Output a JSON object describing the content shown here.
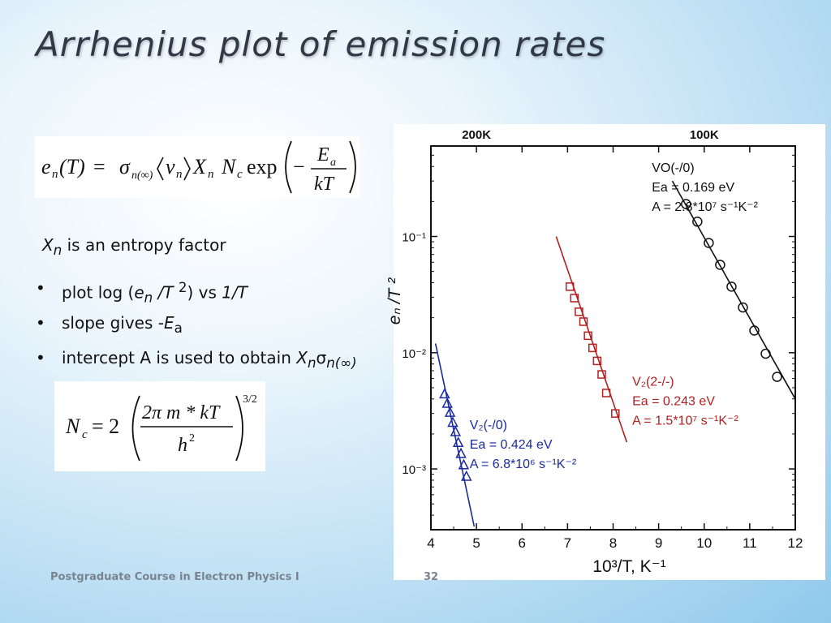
{
  "slide": {
    "title": "Arrhenius plot of emission rates",
    "note_symbol": "X",
    "note_subscript": "n",
    "note_text": " is an entropy factor",
    "bullet_char": "•",
    "bullets": [
      {
        "p1": "plot log (",
        "p2": "e",
        "p3": "n",
        "p4": " /T ",
        "p5": "2",
        "p6": ") vs ",
        "p7": "1/T"
      },
      {
        "p1": "slope gives -",
        "p2": "E",
        "p3": "a"
      },
      {
        "p1": "intercept A is used to obtain ",
        "p2": "X",
        "p3": "n",
        "p4": "σ",
        "p5": "n(∞)"
      }
    ]
  },
  "formula1": {
    "lhs_e": "e",
    "lhs_n": "n",
    "lhs_T": "(T)",
    "equals": "=",
    "sigma": "σ",
    "sigma_sub": "n(∞)",
    "v": "v",
    "v_sub": "n",
    "X": "X",
    "X_sub": "n",
    "N": "N",
    "N_sub": "c",
    "exp": "exp",
    "minus": "−",
    "Ea": "E",
    "Ea_sub": "a",
    "kT": "kT"
  },
  "formula2": {
    "N": "N",
    "N_sub": "c",
    "eq": "= 2",
    "num": "2π m * kT",
    "den": "h",
    "den_sup": "2",
    "power": "3/2"
  },
  "footer": {
    "course": "Postgraduate Course in Electron Physics I",
    "page": "32"
  },
  "chart_data": {
    "type": "scatter",
    "title": "",
    "xlabel": "10³/T, K⁻¹",
    "ylabel": "eₙ /T ²",
    "xlim": [
      4,
      12
    ],
    "ylim": [
      0.0003,
      0.6
    ],
    "y_scale": "log",
    "x_ticks": [
      4,
      5,
      6,
      7,
      8,
      9,
      10,
      11,
      12
    ],
    "y_ticks": [
      {
        "value": 0.1,
        "label": "10⁻¹"
      },
      {
        "value": 0.01,
        "label": "10⁻²"
      },
      {
        "value": 0.001,
        "label": "10⁻³"
      }
    ],
    "top_ticks": [
      {
        "value": 5,
        "label": "200K"
      },
      {
        "value": 10,
        "label": "100K"
      }
    ],
    "grid": false,
    "series": [
      {
        "name": "V₂(-/0)",
        "color": "#1a2aa0",
        "marker": "triangle",
        "x": [
          4.3,
          4.36,
          4.42,
          4.48,
          4.54,
          4.6,
          4.66,
          4.72,
          4.78
        ],
        "y": [
          0.0044,
          0.00365,
          0.00305,
          0.0025,
          0.00208,
          0.00168,
          0.00135,
          0.00108,
          0.00086
        ],
        "fit": {
          "x": [
            4.1,
            4.95
          ],
          "y": [
            0.012,
            0.00032
          ]
        },
        "labels": [
          "V₂(-/0)",
          "Ea = 0.424 eV",
          "A = 6.8*10⁶ s⁻¹K⁻²"
        ]
      },
      {
        "name": "V₂(2-/-)",
        "color": "#b22020",
        "marker": "square",
        "x": [
          7.05,
          7.15,
          7.25,
          7.35,
          7.45,
          7.55,
          7.65,
          7.75,
          7.85,
          8.05
        ],
        "y": [
          0.037,
          0.0295,
          0.0225,
          0.0185,
          0.014,
          0.011,
          0.0085,
          0.0065,
          0.0045,
          0.003
        ],
        "fit": {
          "x": [
            6.75,
            8.3
          ],
          "y": [
            0.1,
            0.0017
          ]
        },
        "labels": [
          "V₂(2-/-)",
          "Ea = 0.243 eV",
          "A = 1.5*10⁷ s⁻¹K⁻²"
        ]
      },
      {
        "name": "VO(-/0)",
        "color": "#111111",
        "marker": "circle",
        "x": [
          9.6,
          9.85,
          10.1,
          10.35,
          10.6,
          10.85,
          11.1,
          11.35,
          11.6
        ],
        "y": [
          0.19,
          0.134,
          0.088,
          0.057,
          0.037,
          0.0245,
          0.0155,
          0.0098,
          0.0062
        ],
        "fit": {
          "x": [
            9.3,
            12.0
          ],
          "y": [
            0.3,
            0.004
          ]
        },
        "labels": [
          "VO(-/0)",
          "Ea = 0.169 eV",
          "A = 2.8*10⁷ s⁻¹K⁻²"
        ]
      }
    ]
  }
}
